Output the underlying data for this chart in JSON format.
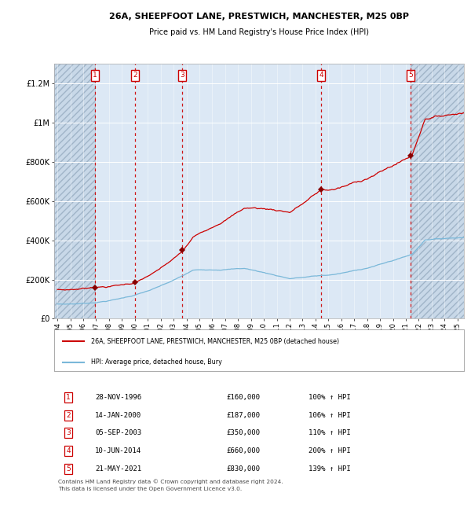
{
  "title1": "26A, SHEEPFOOT LANE, PRESTWICH, MANCHESTER, M25 0BP",
  "title2": "Price paid vs. HM Land Registry's House Price Index (HPI)",
  "transactions": [
    {
      "num": 1,
      "date": "28-NOV-1996",
      "year": 1996.91,
      "price": 160000,
      "pct": "100%",
      "dir": "↑"
    },
    {
      "num": 2,
      "date": "14-JAN-2000",
      "year": 2000.04,
      "price": 187000,
      "pct": "106%",
      "dir": "↑"
    },
    {
      "num": 3,
      "date": "05-SEP-2003",
      "year": 2003.68,
      "price": 350000,
      "pct": "110%",
      "dir": "↑"
    },
    {
      "num": 4,
      "date": "10-JUN-2014",
      "year": 2014.44,
      "price": 660000,
      "pct": "200%",
      "dir": "↑"
    },
    {
      "num": 5,
      "date": "21-MAY-2021",
      "year": 2021.38,
      "price": 830000,
      "pct": "139%",
      "dir": "↑"
    }
  ],
  "hpi_color": "#7ab8d9",
  "price_color": "#cc0000",
  "dot_color": "#880000",
  "vline_color": "#cc0000",
  "background_color": "#dce8f5",
  "grid_color": "#ffffff",
  "box_color": "#cc0000",
  "ylim": [
    0,
    1300000
  ],
  "xlim_start": 1993.75,
  "xlim_end": 2025.5,
  "legend_label_price": "26A, SHEEPFOOT LANE, PRESTWICH, MANCHESTER, M25 0BP (detached house)",
  "legend_label_hpi": "HPI: Average price, detached house, Bury",
  "footer": "Contains HM Land Registry data © Crown copyright and database right 2024.\nThis data is licensed under the Open Government Licence v3.0.",
  "yticks": [
    0,
    200000,
    400000,
    600000,
    800000,
    1000000,
    1200000
  ],
  "ytick_labels": [
    "£0",
    "£200K",
    "£400K",
    "£600K",
    "£800K",
    "£1M",
    "£1.2M"
  ],
  "xticks": [
    1994,
    1995,
    1996,
    1997,
    1998,
    1999,
    2000,
    2001,
    2002,
    2003,
    2004,
    2005,
    2006,
    2007,
    2008,
    2009,
    2010,
    2011,
    2012,
    2013,
    2014,
    2015,
    2016,
    2017,
    2018,
    2019,
    2020,
    2021,
    2022,
    2023,
    2024,
    2025
  ]
}
